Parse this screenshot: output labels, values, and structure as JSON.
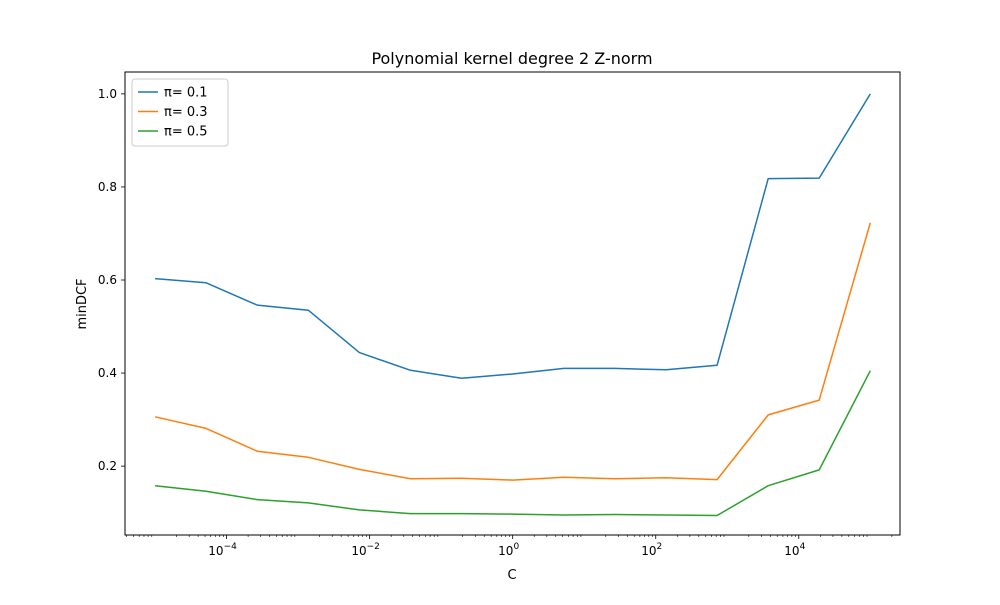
{
  "chart_data": {
    "type": "line",
    "title": "Polynomial kernel degree 2 Z-norm",
    "xlabel": "C",
    "ylabel": "minDCF",
    "xscale": "log",
    "xlim": [
      3.8e-06,
      260000.0
    ],
    "ylim": [
      0.052,
      1.047
    ],
    "grid": false,
    "legend_position": "top-left",
    "x": [
      1e-05,
      5.18e-05,
      0.000268,
      0.00139,
      0.0072,
      0.0373,
      0.193,
      1.0,
      5.18,
      26.8,
      139,
      720,
      3730,
      19300,
      100000
    ],
    "x_ticks": [
      {
        "base": "10",
        "exp": "−4",
        "value": 0.0001
      },
      {
        "base": "10",
        "exp": "−2",
        "value": 0.01
      },
      {
        "base": "10",
        "exp": "0",
        "value": 1
      },
      {
        "base": "10",
        "exp": "2",
        "value": 100
      },
      {
        "base": "10",
        "exp": "4",
        "value": 10000
      }
    ],
    "y_ticks": [
      {
        "label": "0.2",
        "value": 0.2
      },
      {
        "label": "0.4",
        "value": 0.4
      },
      {
        "label": "0.6",
        "value": 0.6
      },
      {
        "label": "0.8",
        "value": 0.8
      },
      {
        "label": "1.0",
        "value": 1.0
      }
    ],
    "series": [
      {
        "name": "π= 0.1",
        "color": "#1f77b4",
        "values": [
          0.603,
          0.594,
          0.546,
          0.535,
          0.444,
          0.406,
          0.389,
          0.398,
          0.41,
          0.41,
          0.407,
          0.417,
          0.818,
          0.819,
          1.0
        ]
      },
      {
        "name": "π= 0.3",
        "color": "#ff7f0e",
        "values": [
          0.306,
          0.281,
          0.232,
          0.219,
          0.193,
          0.173,
          0.174,
          0.17,
          0.176,
          0.173,
          0.175,
          0.171,
          0.31,
          0.342,
          0.723
        ]
      },
      {
        "name": "π= 0.5",
        "color": "#2ca02c",
        "values": [
          0.158,
          0.146,
          0.128,
          0.121,
          0.106,
          0.098,
          0.098,
          0.097,
          0.095,
          0.096,
          0.095,
          0.094,
          0.158,
          0.192,
          0.405
        ]
      }
    ]
  }
}
